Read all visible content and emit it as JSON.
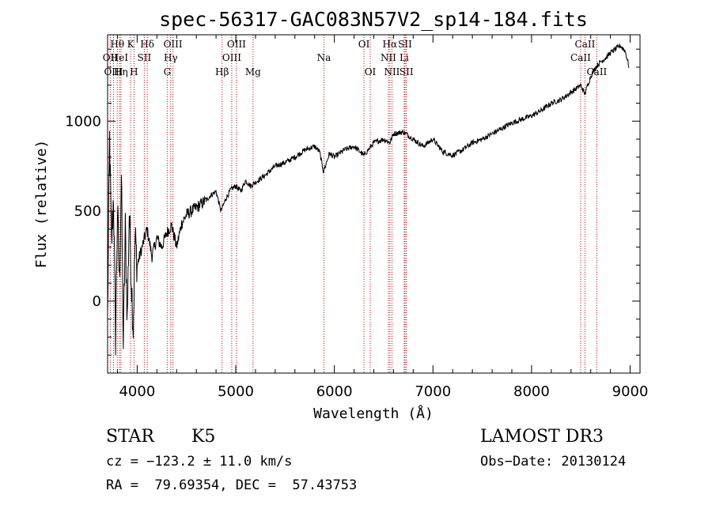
{
  "chart_data": {
    "type": "line",
    "title": "spec-56317-GAC083N57V2_sp14-184.fits",
    "xlabel": "Wavelength (Å)",
    "ylabel": "Flux (relative)",
    "xlim": [
      3700,
      9100
    ],
    "ylim": [
      -400,
      1480
    ],
    "xticks": [
      4000,
      5000,
      6000,
      7000,
      8000,
      9000
    ],
    "yticks": [
      0,
      500,
      1000
    ],
    "series": [
      {
        "name": "spectrum",
        "x": [
          3700,
          3720,
          3740,
          3760,
          3780,
          3800,
          3820,
          3840,
          3860,
          3880,
          3900,
          3920,
          3940,
          3960,
          3980,
          4000,
          4050,
          4100,
          4150,
          4200,
          4250,
          4300,
          4350,
          4400,
          4450,
          4500,
          4550,
          4600,
          4650,
          4700,
          4750,
          4800,
          4850,
          4900,
          4950,
          5000,
          5050,
          5100,
          5150,
          5200,
          5300,
          5400,
          5500,
          5600,
          5700,
          5800,
          5850,
          5890,
          5950,
          6000,
          6100,
          6200,
          6300,
          6400,
          6500,
          6563,
          6600,
          6700,
          6800,
          6900,
          7000,
          7100,
          7200,
          7300,
          7400,
          7500,
          7600,
          7700,
          7800,
          7900,
          8000,
          8100,
          8200,
          8300,
          8400,
          8450,
          8500,
          8540,
          8600,
          8650,
          8700,
          8750,
          8800,
          8850,
          8900,
          8950,
          8990
        ],
        "y": [
          -100,
          900,
          300,
          600,
          -200,
          500,
          100,
          700,
          -250,
          400,
          -100,
          500,
          150,
          -150,
          350,
          200,
          300,
          400,
          250,
          350,
          300,
          380,
          420,
          300,
          430,
          480,
          500,
          520,
          540,
          560,
          590,
          610,
          500,
          570,
          620,
          640,
          610,
          670,
          640,
          660,
          700,
          750,
          770,
          800,
          840,
          860,
          830,
          720,
          820,
          800,
          840,
          860,
          810,
          880,
          900,
          880,
          930,
          940,
          900,
          860,
          900,
          830,
          810,
          840,
          880,
          900,
          930,
          960,
          990,
          1010,
          1030,
          1060,
          1100,
          1120,
          1160,
          1180,
          1200,
          1150,
          1250,
          1300,
          1330,
          1350,
          1380,
          1400,
          1420,
          1390,
          1300
        ]
      }
    ],
    "lines": [
      {
        "name": "Hθ",
        "wave": 3798,
        "row": 0
      },
      {
        "name": "OII",
        "wave": 3727,
        "row": 1
      },
      {
        "name": "HeI",
        "wave": 3820,
        "row": 1
      },
      {
        "name": "OIII",
        "wave": 3760,
        "row": 2
      },
      {
        "name": "Hη",
        "wave": 3835,
        "row": 2
      },
      {
        "name": "K",
        "wave": 3934,
        "row": 0
      },
      {
        "name": "SII",
        "wave": 4072,
        "row": 1
      },
      {
        "name": "H",
        "wave": 3968,
        "row": 2
      },
      {
        "name": "Hδ",
        "wave": 4102,
        "row": 0
      },
      {
        "name": "OIII",
        "wave": 4363,
        "row": 0
      },
      {
        "name": "Hγ",
        "wave": 4340,
        "row": 1
      },
      {
        "name": "G",
        "wave": 4305,
        "row": 2
      },
      {
        "name": "Hβ",
        "wave": 4861,
        "row": 2
      },
      {
        "name": "OIII",
        "wave": 5007,
        "row": 0
      },
      {
        "name": "OIII",
        "wave": 4959,
        "row": 1
      },
      {
        "name": "Mg",
        "wave": 5175,
        "row": 2
      },
      {
        "name": "Na",
        "wave": 5894,
        "row": 1
      },
      {
        "name": "OI",
        "wave": 6300,
        "row": 0
      },
      {
        "name": "OI",
        "wave": 6364,
        "row": 2
      },
      {
        "name": "Hα",
        "wave": 6563,
        "row": 0
      },
      {
        "name": "NII",
        "wave": 6548,
        "row": 1
      },
      {
        "name": "NII",
        "wave": 6584,
        "row": 2
      },
      {
        "name": "SII",
        "wave": 6717,
        "row": 0
      },
      {
        "name": "Li",
        "wave": 6708,
        "row": 1
      },
      {
        "name": "SII",
        "wave": 6731,
        "row": 2
      },
      {
        "name": "CaII",
        "wave": 8542,
        "row": 0
      },
      {
        "name": "CaII",
        "wave": 8498,
        "row": 1
      },
      {
        "name": "CaII",
        "wave": 8662,
        "row": 2
      }
    ]
  },
  "info": {
    "object_class": "STAR",
    "subclass": "K5",
    "survey": "LAMOST DR3",
    "cz": "cz = −123.2 ± 11.0 km/s",
    "obs_date": "Obs−Date: 20130124",
    "coords": "RA =  79.69354, DEC =  57.43753"
  },
  "colors": {
    "line_marker": "#cc0000",
    "spectrum": "#000000"
  }
}
